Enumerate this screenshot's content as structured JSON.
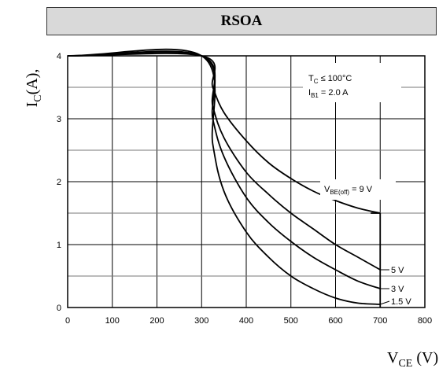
{
  "title": "RSOA",
  "chart_data": {
    "type": "line",
    "title": "RSOA",
    "ylabel": "I",
    "ylabel_sub": "C",
    "ylabel_rest": "(A),",
    "xlabel": "V",
    "xlabel_sub": "CE",
    "xlabel_rest": " (V)",
    "xlim": [
      0,
      800
    ],
    "ylim": [
      0,
      4
    ],
    "xticks": [
      0,
      100,
      200,
      300,
      400,
      500,
      600,
      700,
      800
    ],
    "yticks": [
      0,
      1,
      2,
      3,
      4
    ],
    "grid": true,
    "conditions": {
      "line1_main": "T",
      "line1_sub": "C",
      "line1_rest": " ≤ 100°C",
      "line2_main": "I",
      "line2_sub": "B1",
      "line2_rest": " = 2.0 A"
    },
    "series": [
      {
        "name": "9 V",
        "label_main": "V",
        "label_sub": "BE(off)",
        "label_rest": " = 9 V",
        "x": [
          0,
          300,
          325,
          350,
          400,
          450,
          500,
          550,
          600,
          650,
          700
        ],
        "y": [
          4.0,
          4.0,
          3.5,
          3.1,
          2.65,
          2.3,
          2.05,
          1.85,
          1.7,
          1.58,
          1.5
        ]
      },
      {
        "name": "5 V",
        "label_main": "5 V",
        "x": [
          0,
          300,
          325,
          350,
          400,
          450,
          500,
          550,
          600,
          650,
          700
        ],
        "y": [
          4.0,
          4.0,
          3.2,
          2.7,
          2.15,
          1.8,
          1.5,
          1.25,
          1.0,
          0.8,
          0.6
        ]
      },
      {
        "name": "3 V",
        "label_main": "3 V",
        "x": [
          0,
          300,
          325,
          350,
          400,
          450,
          500,
          550,
          600,
          650,
          700
        ],
        "y": [
          4.0,
          4.0,
          3.0,
          2.4,
          1.75,
          1.35,
          1.05,
          0.8,
          0.6,
          0.42,
          0.3
        ]
      },
      {
        "name": "1.5 V",
        "label_main": "1.5 V",
        "x": [
          0,
          300,
          325,
          350,
          400,
          450,
          500,
          550,
          600,
          650,
          700
        ],
        "y": [
          4.0,
          4.0,
          2.6,
          1.85,
          1.2,
          0.8,
          0.5,
          0.3,
          0.15,
          0.07,
          0.05
        ]
      }
    ]
  }
}
